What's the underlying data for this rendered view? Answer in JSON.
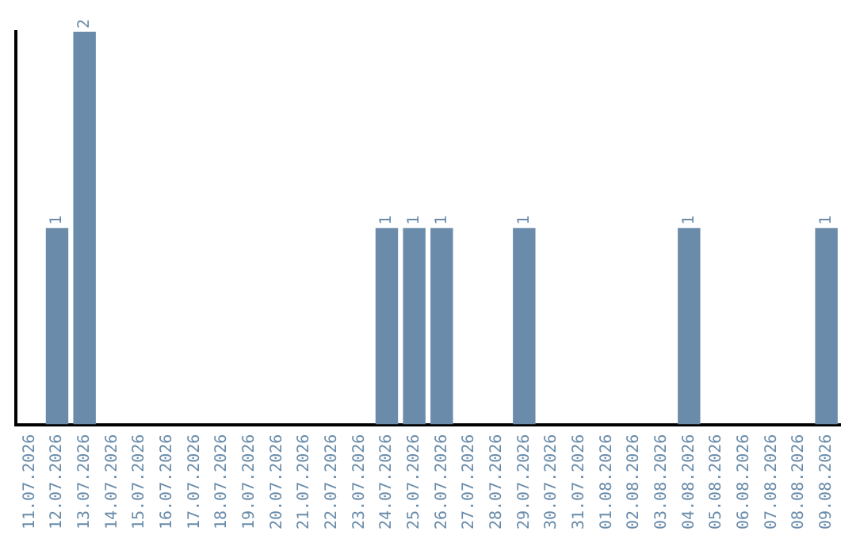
{
  "chart_data": {
    "type": "bar",
    "categories": [
      "11.07.2026",
      "12.07.2026",
      "13.07.2026",
      "14.07.2026",
      "15.07.2026",
      "16.07.2026",
      "17.07.2026",
      "18.07.2026",
      "19.07.2026",
      "20.07.2026",
      "21.07.2026",
      "22.07.2026",
      "23.07.2026",
      "24.07.2026",
      "25.07.2026",
      "26.07.2026",
      "27.07.2026",
      "28.07.2026",
      "29.07.2026",
      "30.07.2026",
      "31.07.2026",
      "01.08.2026",
      "02.08.2026",
      "03.08.2026",
      "04.08.2026",
      "05.08.2026",
      "06.08.2026",
      "07.08.2026",
      "08.08.2026",
      "09.08.2026"
    ],
    "values": [
      0,
      1,
      2,
      0,
      0,
      0,
      0,
      0,
      0,
      0,
      0,
      0,
      0,
      1,
      1,
      1,
      0,
      0,
      1,
      0,
      0,
      0,
      0,
      0,
      1,
      0,
      0,
      0,
      0,
      1
    ],
    "value_labels": [
      null,
      "1",
      "2",
      null,
      null,
      null,
      null,
      null,
      null,
      null,
      null,
      null,
      null,
      "1",
      "1",
      "1",
      null,
      null,
      "1",
      null,
      null,
      null,
      null,
      null,
      "1",
      null,
      null,
      null,
      null,
      "1"
    ],
    "color": "#6a8caa",
    "tick_labels": "x",
    "grid": false,
    "legend": false
  }
}
